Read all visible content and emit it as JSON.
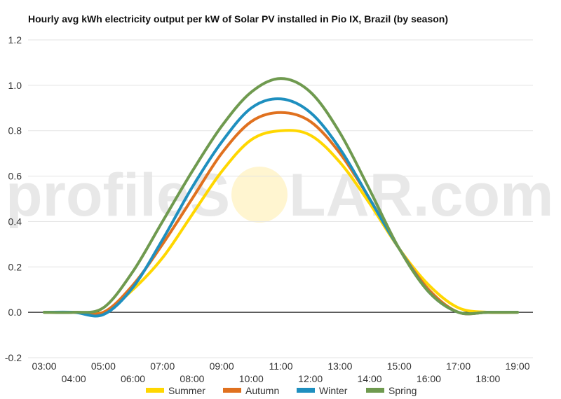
{
  "chart_data": {
    "type": "line",
    "title": "Hourly avg kWh electricity output per kW of Solar PV installed in Pio IX, Brazil (by season)",
    "xlabel": "",
    "ylabel": "",
    "x": [
      "03:00",
      "04:00",
      "05:00",
      "06:00",
      "07:00",
      "08:00",
      "09:00",
      "10:00",
      "11:00",
      "12:00",
      "13:00",
      "14:00",
      "15:00",
      "16:00",
      "17:00",
      "18:00",
      "19:00"
    ],
    "ylim": [
      -0.2,
      1.2
    ],
    "yticks": [
      "-0.2",
      "0.0",
      "0.2",
      "0.4",
      "0.6",
      "0.8",
      "1.0",
      "1.2"
    ],
    "grid": true,
    "legend_position": "bottom",
    "series": [
      {
        "name": "Summer",
        "color": "#ffd700",
        "values": [
          0.0,
          0.0,
          0.0,
          0.1,
          0.24,
          0.43,
          0.62,
          0.76,
          0.8,
          0.78,
          0.66,
          0.48,
          0.28,
          0.12,
          0.02,
          0.0,
          0.0
        ]
      },
      {
        "name": "Autumn",
        "color": "#e0711f",
        "values": [
          0.0,
          0.0,
          0.0,
          0.12,
          0.3,
          0.5,
          0.7,
          0.84,
          0.88,
          0.84,
          0.7,
          0.5,
          0.28,
          0.1,
          0.0,
          0.0,
          0.0
        ]
      },
      {
        "name": "Winter",
        "color": "#1e8fbf",
        "values": [
          0.0,
          0.0,
          -0.01,
          0.11,
          0.32,
          0.55,
          0.75,
          0.9,
          0.94,
          0.88,
          0.72,
          0.5,
          0.28,
          0.09,
          0.0,
          0.0,
          0.0
        ]
      },
      {
        "name": "Spring",
        "color": "#6f9a4f",
        "values": [
          0.0,
          0.0,
          0.02,
          0.18,
          0.4,
          0.62,
          0.82,
          0.97,
          1.03,
          0.97,
          0.79,
          0.54,
          0.28,
          0.09,
          0.0,
          0.0,
          0.0
        ]
      }
    ]
  },
  "watermark": {
    "text_left": "profileS",
    "text_right": "LAR.com",
    "sun_color": "#fff3c8"
  },
  "axis_line_color": "#222222",
  "grid_color": "#e3e3e3"
}
